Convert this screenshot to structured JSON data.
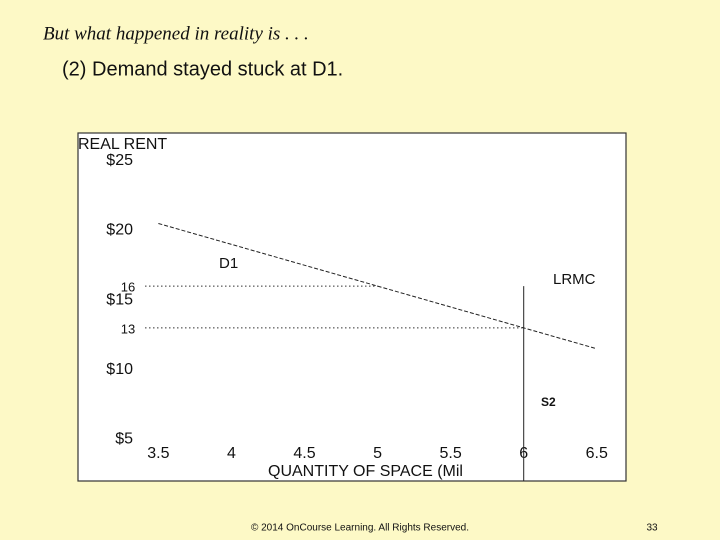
{
  "slide": {
    "heading": "But what happened in reality is . . .",
    "subheading": "(2) Demand stayed stuck at D1.",
    "footer": "© 2014 OnCourse Learning. All Rights Reserved.",
    "page_number": "33"
  },
  "chart_data": {
    "type": "line",
    "y_label": "REAL RENT",
    "x_label": "QUANTITY OF SPACE (Mil",
    "xlim": [
      2.95,
      6.7
    ],
    "ylim": [
      2,
      27
    ],
    "xticks": [
      3.5,
      4,
      4.5,
      5,
      5.5,
      6,
      6.5
    ],
    "yticks": [
      {
        "value": 25,
        "label": "$25"
      },
      {
        "value": 20,
        "label": "$20"
      },
      {
        "value": 15,
        "label": "$15"
      },
      {
        "value": 10,
        "label": "$10"
      },
      {
        "value": 5,
        "label": "$5"
      }
    ],
    "series": [
      {
        "name": "D1",
        "color": "#222222",
        "x": [
          3.5,
          6.5
        ],
        "values": [
          20.5,
          11.5
        ]
      },
      {
        "name": "S2",
        "color": "#222222",
        "x": [
          6,
          6
        ],
        "values": [
          16,
          2
        ]
      }
    ],
    "reference_lines": [
      {
        "value": 16,
        "label": "16",
        "x_end": 5
      },
      {
        "value": 13,
        "label": "13",
        "x_end": 6
      }
    ],
    "annotations": [
      "LRMC"
    ]
  }
}
